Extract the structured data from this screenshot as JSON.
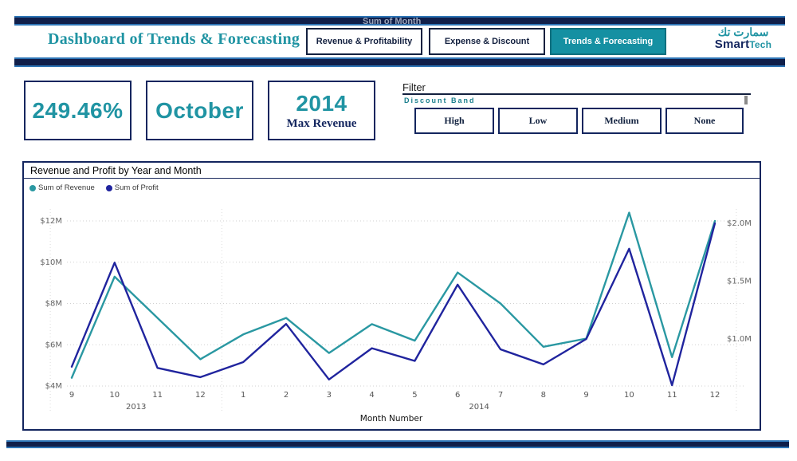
{
  "header": {
    "title": "Dashboard of Trends & Forecasting",
    "clipped_text": "Sum of Month",
    "nav": [
      {
        "label": "Revenue & Profitability",
        "active": false
      },
      {
        "label": "Expense & Discount",
        "active": false
      },
      {
        "label": "Trends & Forecasting",
        "active": true
      }
    ],
    "logo": {
      "arabic": "سمارت تك",
      "brand_primary": "Smart",
      "brand_secondary": "Tech"
    }
  },
  "kpis": [
    {
      "value": "249.46%",
      "caption": ""
    },
    {
      "value": "October",
      "caption": ""
    },
    {
      "value": "2014",
      "caption": "Max Revenue"
    }
  ],
  "filter": {
    "label": "Filter",
    "slicer_title": "Discount Band",
    "options": [
      "High",
      "Low",
      "Medium",
      "None"
    ]
  },
  "chart": {
    "title": "Revenue and Profit by Year and Month",
    "legend": [
      {
        "label": "Sum of Revenue",
        "color": "#2a98a2"
      },
      {
        "label": "Sum of Profit",
        "color": "#20249e"
      }
    ]
  },
  "chart_data": {
    "type": "line",
    "title": "Revenue and Profit by Year and Month",
    "xlabel": "Month Number",
    "x_groups": [
      {
        "year": "2013",
        "months": [
          "9",
          "10",
          "11",
          "12"
        ]
      },
      {
        "year": "2014",
        "months": [
          "1",
          "2",
          "3",
          "4",
          "5",
          "6",
          "7",
          "8",
          "9",
          "10",
          "11",
          "12"
        ]
      }
    ],
    "series": [
      {
        "name": "Sum of Revenue",
        "axis": "left",
        "color": "#2a98a2",
        "values_musd": [
          4.4,
          9.3,
          7.3,
          5.3,
          6.5,
          7.3,
          5.6,
          7.0,
          6.2,
          9.5,
          8.0,
          5.9,
          6.3,
          12.4,
          5.4,
          12.0
        ]
      },
      {
        "name": "Sum of Profit",
        "axis": "right",
        "color": "#20249e",
        "values_musd": [
          0.76,
          1.66,
          0.75,
          0.67,
          0.8,
          1.13,
          0.65,
          0.92,
          0.81,
          1.47,
          0.91,
          0.78,
          1.0,
          1.78,
          0.6,
          2.0
        ]
      }
    ],
    "left_axis": {
      "ticks": [
        "$12M",
        "$10M",
        "$8M",
        "$6M",
        "$4M"
      ],
      "tick_values": [
        12,
        10,
        8,
        6,
        4
      ],
      "range": [
        4,
        12.4
      ]
    },
    "right_axis": {
      "ticks": [
        "$2.0M",
        "$1.5M",
        "$1.0M"
      ],
      "tick_values": [
        2.0,
        1.5,
        1.0
      ],
      "range": [
        0.6,
        2.0
      ]
    },
    "grid": "dotted-horizontal",
    "legend_position": "top-left"
  }
}
